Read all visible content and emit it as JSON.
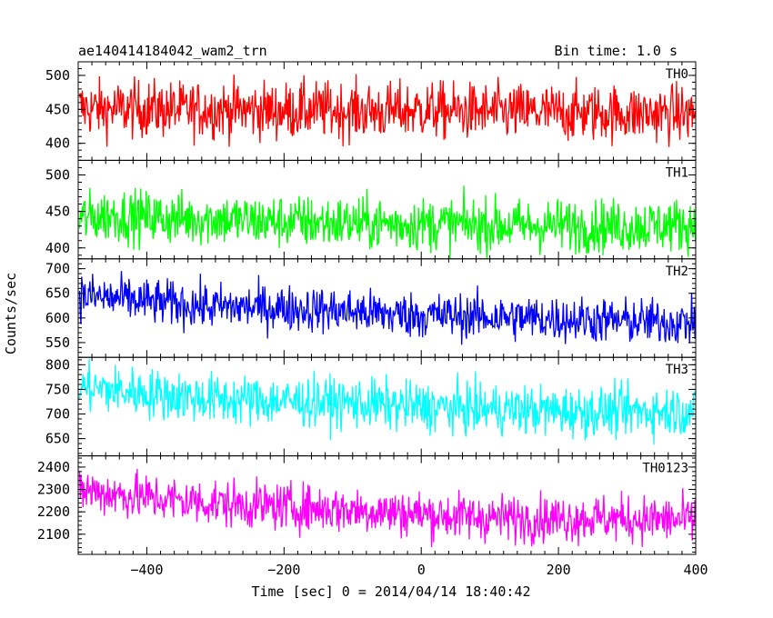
{
  "title_left": "ae140414184042_wam2_trn",
  "title_right": "Bin time: 1.0 s",
  "ylabel": "Counts/sec",
  "xlabel": "Time [sec] 0 = 2014/04/14 18:40:42",
  "chart_data": {
    "type": "line",
    "title": "ae140414184042_wam2_trn",
    "xlabel": "Time [sec] 0 = 2014/04/14 18:40:42",
    "ylabel": "Counts/sec",
    "xlim": [
      -500,
      400
    ],
    "xticks": [
      -400,
      -200,
      0,
      200,
      400
    ],
    "x": [
      -500,
      -450,
      -400,
      -350,
      -300,
      -250,
      -200,
      -150,
      -100,
      -50,
      0,
      50,
      100,
      150,
      200,
      250,
      300,
      350,
      400
    ],
    "series": [
      {
        "name": "TH0",
        "color": "#ff0000",
        "ylim": [
          375,
          520
        ],
        "yticks": [
          400,
          450,
          500
        ],
        "trend": [
          452,
          450,
          451,
          449,
          450,
          449,
          448,
          449,
          448,
          447,
          449,
          447,
          446,
          446,
          445,
          445,
          444,
          444,
          443
        ],
        "noise": 38
      },
      {
        "name": "TH1",
        "color": "#00ff00",
        "ylim": [
          385,
          520
        ],
        "yticks": [
          400,
          450,
          500
        ],
        "trend": [
          440,
          445,
          442,
          440,
          440,
          437,
          436,
          435,
          434,
          433,
          433,
          432,
          431,
          430,
          431,
          430,
          430,
          431,
          432
        ],
        "noise": 33
      },
      {
        "name": "TH2",
        "color": "#0000ff",
        "ylim": [
          520,
          720
        ],
        "yticks": [
          550,
          600,
          650,
          700
        ],
        "trend": [
          645,
          640,
          633,
          628,
          622,
          622,
          620,
          617,
          613,
          608,
          606,
          604,
          602,
          600,
          598,
          596,
          593,
          592,
          590
        ],
        "noise": 42
      },
      {
        "name": "TH3",
        "color": "#00ffff",
        "ylim": [
          615,
          815
        ],
        "yticks": [
          650,
          700,
          750,
          800
        ],
        "trend": [
          755,
          748,
          742,
          736,
          730,
          728,
          726,
          724,
          722,
          718,
          714,
          712,
          710,
          708,
          706,
          705,
          705,
          706,
          708
        ],
        "noise": 46
      },
      {
        "name": "TH0123",
        "color": "#ff00ff",
        "ylim": [
          2010,
          2450
        ],
        "yticks": [
          2100,
          2200,
          2300,
          2400
        ],
        "trend": [
          2300,
          2280,
          2265,
          2250,
          2240,
          2230,
          2222,
          2215,
          2210,
          2200,
          2190,
          2180,
          2175,
          2170,
          2170,
          2172,
          2168,
          2165,
          2162
        ],
        "noise": 95
      }
    ]
  }
}
